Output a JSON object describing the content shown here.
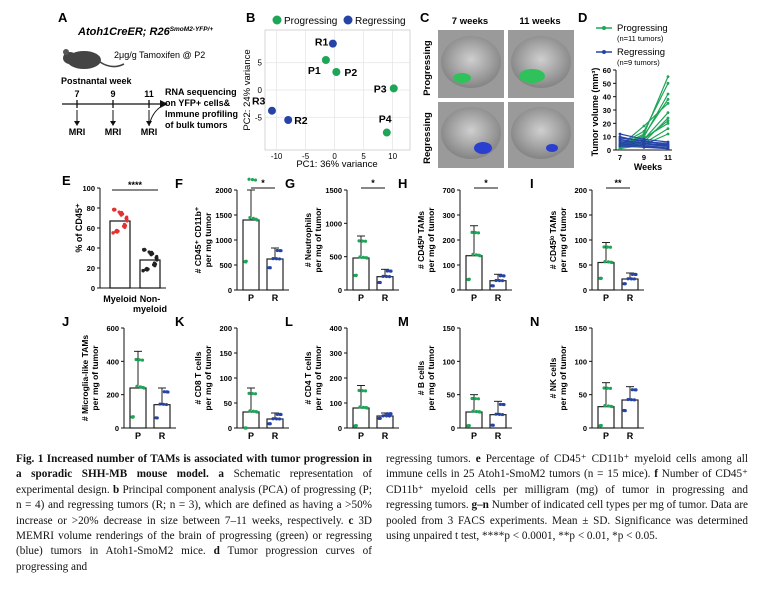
{
  "panel_letters": [
    "A",
    "B",
    "C",
    "D",
    "E",
    "F",
    "G",
    "H",
    "I",
    "J",
    "K",
    "L",
    "M",
    "N"
  ],
  "panel_a": {
    "genotype_prefix": "Atoh1CreER; R26",
    "genotype_super": "SmoM2-YFP/+",
    "dose": "2μg/g Tamoxifen @ P2",
    "timeline_title": "Postnantal week",
    "weeks": [
      "7",
      "9",
      "11"
    ],
    "mri": [
      "MRI",
      "MRI",
      "MRI"
    ],
    "rna_lines": [
      "RNA sequencing",
      "on YFP+ cells&",
      "Immune profiling",
      "of bulk tumors"
    ]
  },
  "panel_b": {
    "legend_progressing": "Progressing",
    "legend_regressing": "Regressing",
    "xlabel": "PC1: 36% variance",
    "ylabel": "PC2: 24% variance",
    "x_ticks": [
      "-10",
      "-5",
      "0",
      "5",
      "10"
    ],
    "y_ticks": [
      "5",
      "0",
      "-5"
    ],
    "points": [
      {
        "label": "R1",
        "group": "R",
        "x": -0.3,
        "y": 8.5
      },
      {
        "label": "P1",
        "group": "P",
        "x": -1.5,
        "y": 5.5
      },
      {
        "label": "P2",
        "group": "P",
        "x": 0.3,
        "y": 3.3
      },
      {
        "label": "P3",
        "group": "P",
        "x": 10.2,
        "y": 0.3
      },
      {
        "label": "R3",
        "group": "R",
        "x": -10.8,
        "y": -3.8
      },
      {
        "label": "R2",
        "group": "R",
        "x": -8,
        "y": -5.5
      },
      {
        "label": "P4",
        "group": "P",
        "x": 9,
        "y": -7.8
      }
    ]
  },
  "panel_c": {
    "col_labels": [
      "7 weeks",
      "11 weeks"
    ],
    "row_labels": [
      "Progressing",
      "Regressing"
    ]
  },
  "panel_d": {
    "legend": [
      {
        "name": "Progressing",
        "n": "(n=11 tumors)",
        "color": "#1fa558"
      },
      {
        "name": "Regressing",
        "n": "(n=9 tumors)",
        "color": "#2644a8"
      }
    ],
    "ylabel": "Tumor volume (mm³)",
    "xlabel": "Weeks",
    "x_ticks": [
      "7",
      "9",
      "11"
    ],
    "y_ticks": [
      "0",
      "10",
      "20",
      "30",
      "40",
      "50",
      "60"
    ]
  },
  "panel_e": {
    "ylabel": "% of CD45⁺",
    "y_ticks": [
      "0",
      "20",
      "40",
      "60",
      "80",
      "100"
    ],
    "categories": [
      "Myeloid",
      "Non-\nmyeloid"
    ],
    "means": [
      67,
      28
    ],
    "sig": "****"
  },
  "small_panels": [
    {
      "letter": "F",
      "ylabel": [
        "# CD45⁺ CD11b⁺",
        "per mg tumor"
      ],
      "ticks": [
        "0",
        "500",
        "1000",
        "1500",
        "2000"
      ],
      "max": 2000,
      "mean_p": 1400,
      "sd_p": 1050,
      "mean_r": 620,
      "sd_r": 220,
      "sig": "*"
    },
    {
      "letter": "G",
      "ylabel": [
        "# Neutrophils",
        "per mg of tumor"
      ],
      "ticks": [
        "0",
        "500",
        "1000",
        "1500"
      ],
      "max": 1500,
      "mean_p": 480,
      "sd_p": 330,
      "mean_r": 200,
      "sd_r": 110,
      "sig": "*"
    },
    {
      "letter": "H",
      "ylabel": [
        "# CD45ʰᶦ TAMs",
        "per mg of tumor"
      ],
      "ticks": [
        "0",
        "100",
        "200",
        "300",
        "700"
      ],
      "max": 700,
      "mean_p": 240,
      "sd_p": 210,
      "mean_r": 65,
      "sd_r": 45,
      "sig": "*"
    },
    {
      "letter": "I",
      "ylabel": [
        "# CD45ˡᵒ TAMs",
        "per mg of tumor"
      ],
      "ticks": [
        "0",
        "50",
        "100",
        "150",
        "200"
      ],
      "max": 200,
      "mean_p": 55,
      "sd_p": 40,
      "mean_r": 22,
      "sd_r": 12,
      "sig": "**"
    },
    {
      "letter": "J",
      "ylabel": [
        "# Microglia-like TAMs",
        "per mg of tumor"
      ],
      "ticks": [
        "0",
        "200",
        "400",
        "600"
      ],
      "max": 600,
      "mean_p": 240,
      "sd_p": 220,
      "mean_r": 140,
      "sd_r": 100,
      "sig": ""
    },
    {
      "letter": "K",
      "ylabel": [
        "# CD8 T cells",
        "per mg of tumor"
      ],
      "ticks": [
        "0",
        "50",
        "100",
        "150",
        "200"
      ],
      "max": 200,
      "mean_p": 32,
      "sd_p": 48,
      "mean_r": 18,
      "sd_r": 12,
      "sig": ""
    },
    {
      "letter": "L",
      "ylabel": [
        "# CD4 T cells",
        "per mg of tumor"
      ],
      "ticks": [
        "0",
        "100",
        "200",
        "300",
        "400"
      ],
      "max": 400,
      "mean_p": 80,
      "sd_p": 90,
      "mean_r": 48,
      "sd_r": 12,
      "sig": ""
    },
    {
      "letter": "M",
      "ylabel": [
        "# B cells",
        "per mg of tumor"
      ],
      "ticks": [
        "0",
        "50",
        "100",
        "150"
      ],
      "max": 150,
      "mean_p": 24,
      "sd_p": 26,
      "mean_r": 20,
      "sd_r": 20,
      "sig": ""
    },
    {
      "letter": "N",
      "ylabel": [
        "# NK cells",
        "per mg of tumor"
      ],
      "ticks": [
        "0",
        "50",
        "100",
        "150"
      ],
      "max": 150,
      "mean_p": 32,
      "sd_p": 36,
      "mean_r": 42,
      "sd_r": 20,
      "sig": ""
    }
  ],
  "small_xcats": [
    "P",
    "R"
  ],
  "colors": {
    "green": "#1fa558",
    "blue": "#2644a8",
    "bar": "#222222"
  },
  "caption": {
    "fig_label": "Fig. 1",
    "title": "Increased number of TAMs is associated with tumor progression in a sporadic SHH-MB mouse model.",
    "left_rest_1": "Schematic representation of experimental design.",
    "left_b": "Principal component analysis (PCA) of progressing (P; n = 4) and regressing tumors (R; n = 3), which are defined as having a >50% increase or >20% decrease in size between 7–11 weeks, respectively.",
    "left_c": "3D MEMRI volume renderings of the brain of progressing (green) or regressing (blue) tumors in Atoh1-SmoM2 mice.",
    "left_d": "Tumor progression curves of progressing and",
    "right_1": "regressing tumors.",
    "right_e": "Percentage of CD45⁺ CD11b⁺ myeloid cells among all immune cells in 25 Atoh1-SmoM2 tumors (n = 15 mice).",
    "right_f": "Number of CD45⁺ CD11b⁺ myeloid cells per milligram (mg) of tumor in progressing and regressing tumors.",
    "right_gn": "Number of indicated cell types per mg of tumor. Data are pooled from 3 FACS experiments. Mean ± SD. Significance was determined using unpaired t test, ****p < 0.0001, **p < 0.01, *p < 0.05."
  }
}
